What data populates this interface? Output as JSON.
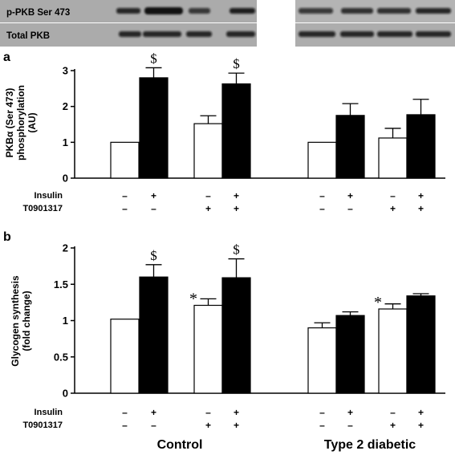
{
  "blots": {
    "label_phospho": "p-PKB Ser 473",
    "label_total": "Total PKB"
  },
  "conditions": {
    "insulin_label": "Insulin",
    "t09_label": "T0901317",
    "insulin": [
      "–",
      "+",
      "–",
      "+"
    ],
    "t09": [
      "–",
      "–",
      "+",
      "+"
    ]
  },
  "groups": [
    "Control",
    "Type 2 diabetic"
  ],
  "colors": {
    "insulin_minus": "#ffffff",
    "insulin_plus": "#000000"
  },
  "chart_data": [
    {
      "type": "bar",
      "panel": "a",
      "ylabel": "PKBα (Ser 473) phosphorylation (AU)",
      "ylabel_lines": [
        "PKBα (Ser 473)",
        "phosphorylation",
        "(AU)"
      ],
      "ylim": [
        0,
        3
      ],
      "yticks": [
        0,
        1,
        2,
        3
      ],
      "ytick_labels": [
        "0",
        "1",
        "2",
        "3"
      ],
      "values": [
        1.0,
        2.8,
        1.52,
        2.63,
        1.0,
        1.75,
        1.12,
        1.77
      ],
      "errors": [
        0.0,
        0.28,
        0.22,
        0.3,
        0.0,
        0.33,
        0.27,
        0.43
      ],
      "annotations": [
        "",
        "$",
        "",
        "$",
        "",
        "",
        "",
        ""
      ]
    },
    {
      "type": "bar",
      "panel": "b",
      "ylabel": "Glycogen synthesis (fold change)",
      "ylabel_lines": [
        "Glycogen synthesis",
        "(fold change)"
      ],
      "ylim": [
        0,
        2
      ],
      "yticks": [
        0,
        0.5,
        1,
        1.5,
        2
      ],
      "ytick_labels": [
        "0",
        "0.5",
        "1",
        "1.5",
        "2"
      ],
      "values": [
        1.02,
        1.6,
        1.21,
        1.59,
        0.9,
        1.07,
        1.16,
        1.34
      ],
      "errors": [
        0.0,
        0.17,
        0.09,
        0.26,
        0.07,
        0.05,
        0.07,
        0.03
      ],
      "annotations": [
        "",
        "$",
        "*",
        "$",
        "",
        "",
        "*",
        ""
      ]
    }
  ]
}
